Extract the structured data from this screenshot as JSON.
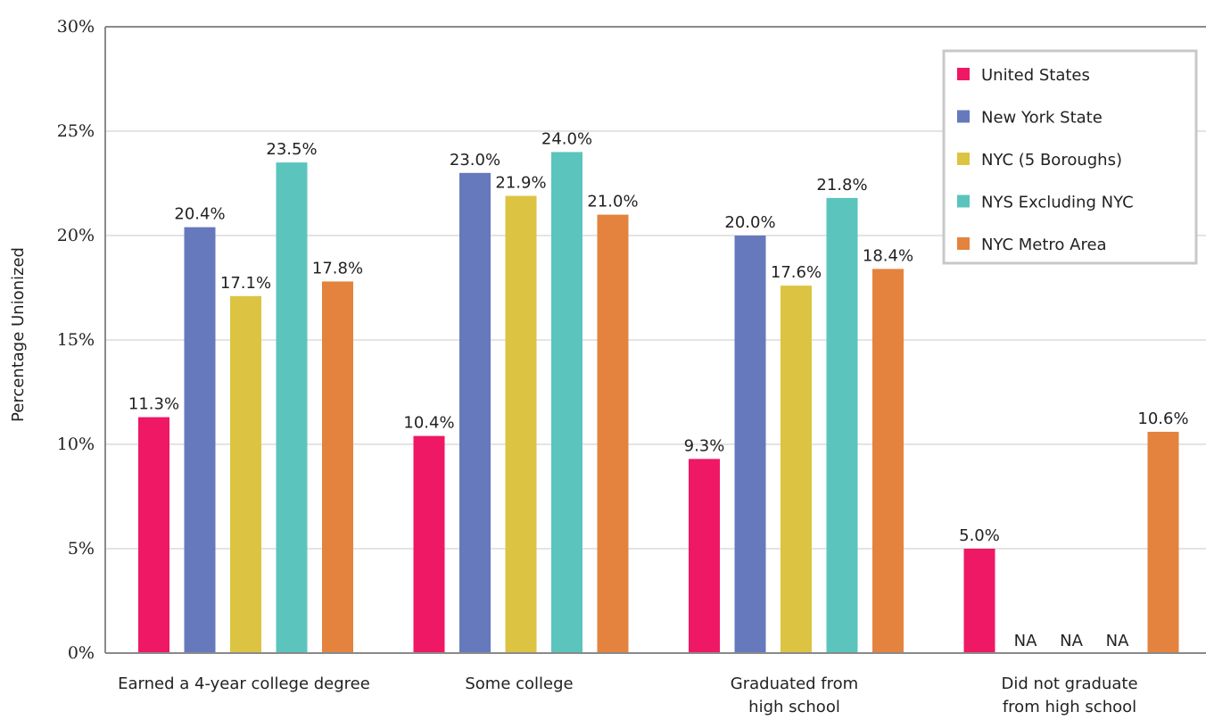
{
  "chart_data": {
    "type": "bar",
    "title": "",
    "ylabel": "Percentage Unionized",
    "xlabel": "",
    "ylim": [
      0,
      30
    ],
    "yticks": [
      0,
      5,
      10,
      15,
      20,
      25,
      30
    ],
    "ytick_labels": [
      "0%",
      "5%",
      "10%",
      "15%",
      "20%",
      "25%",
      "30%"
    ],
    "grid": true,
    "legend_position": "top-right",
    "categories": [
      [
        "Earned a 4-year college degree"
      ],
      [
        "Some college"
      ],
      [
        "Graduated from",
        "high school"
      ],
      [
        "Did not graduate",
        "from high school"
      ]
    ],
    "series": [
      {
        "name": "United States",
        "color": "#EE1864",
        "values": [
          11.3,
          10.4,
          9.3,
          5.0
        ],
        "labels": [
          "11.3%",
          "10.4%",
          "9.3%",
          "5.0%"
        ]
      },
      {
        "name": "New York State",
        "color": "#6679BC",
        "values": [
          20.4,
          23.0,
          20.0,
          null
        ],
        "labels": [
          "20.4%",
          "23.0%",
          "20.0%",
          "NA"
        ]
      },
      {
        "name": "NYC (5 Boroughs)",
        "color": "#DDC342",
        "values": [
          17.1,
          21.9,
          17.6,
          null
        ],
        "labels": [
          "17.1%",
          "21.9%",
          "17.6%",
          "NA"
        ]
      },
      {
        "name": "NYS Excluding NYC",
        "color": "#5BC4BD",
        "values": [
          23.5,
          24.0,
          21.8,
          null
        ],
        "labels": [
          "23.5%",
          "24.0%",
          "21.8%",
          "NA"
        ]
      },
      {
        "name": "NYC Metro Area",
        "color": "#E3833E",
        "values": [
          17.8,
          21.0,
          18.4,
          10.6
        ],
        "labels": [
          "17.8%",
          "21.0%",
          "18.4%",
          "10.6%"
        ]
      }
    ]
  }
}
